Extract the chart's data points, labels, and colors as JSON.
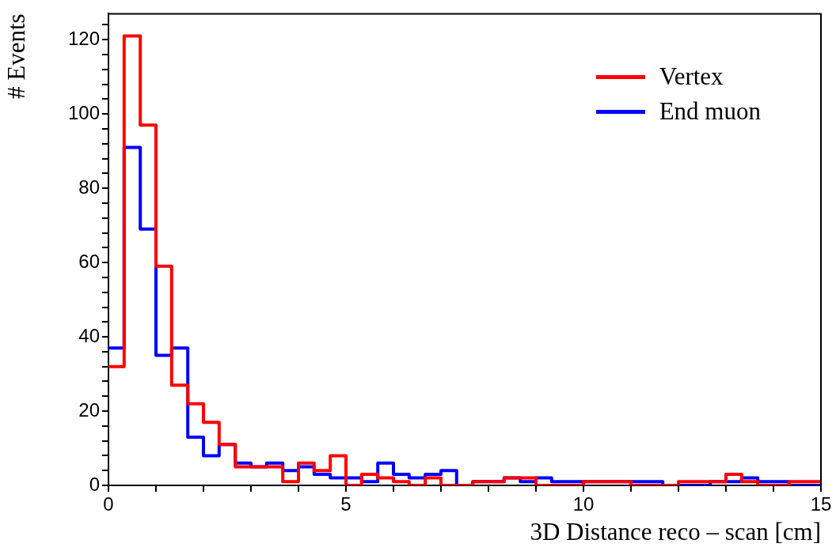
{
  "chart_data": {
    "type": "histogram",
    "xlabel": "3D Distance reco – scan [cm]",
    "ylabel": "# Events",
    "bins": [
      0,
      0.33,
      0.67,
      1,
      1.33,
      1.67,
      2,
      2.33,
      2.67,
      3,
      3.33,
      3.67,
      4,
      4.33,
      4.67,
      5,
      5.33,
      5.67,
      6,
      6.33,
      6.67,
      7,
      7.33,
      7.67,
      8,
      8.33,
      8.67,
      9,
      9.33,
      9.67,
      10,
      10.33,
      10.67,
      11,
      11.33,
      11.67,
      12,
      12.33,
      12.67,
      13,
      13.33,
      13.67,
      14,
      14.33,
      14.67,
      15
    ],
    "series": [
      {
        "name": "Vertex",
        "color": "#ff0000",
        "values": [
          32,
          121,
          97,
          59,
          27,
          22,
          17,
          11,
          5,
          5,
          5,
          1,
          6,
          4,
          8,
          0,
          3,
          2,
          1,
          0,
          2,
          0,
          0,
          1,
          1,
          2,
          2,
          0,
          0,
          0,
          1,
          1,
          1,
          0,
          0,
          0,
          1,
          1,
          1,
          3,
          1,
          0,
          0,
          1,
          1
        ]
      },
      {
        "name": "End muon",
        "color": "#0000ff",
        "values": [
          37,
          91,
          69,
          35,
          37,
          13,
          8,
          11,
          6,
          5,
          6,
          4,
          5,
          3,
          2,
          2,
          1,
          6,
          3,
          2,
          3,
          4,
          0,
          1,
          1,
          2,
          1,
          2,
          1,
          1,
          1,
          1,
          1,
          1,
          1,
          0,
          0,
          0,
          1,
          1,
          2,
          1,
          1,
          0,
          0
        ]
      }
    ],
    "xlim": [
      0,
      15
    ],
    "xticks": [
      0,
      {
        "value": 1,
        "label": null
      },
      {
        "value": 2,
        "label": null
      },
      {
        "value": 3,
        "label": null
      },
      {
        "value": 4,
        "label": null
      },
      5,
      {
        "value": 6,
        "label": null
      },
      {
        "value": 7,
        "label": null
      },
      {
        "value": 8,
        "label": null
      },
      {
        "value": 9,
        "label": null
      },
      10,
      {
        "value": 11,
        "label": null
      },
      {
        "value": 12,
        "label": null
      },
      {
        "value": 13,
        "label": null
      },
      {
        "value": 14,
        "label": null
      },
      15
    ],
    "ylim": [
      0,
      127
    ],
    "yticks": [
      0,
      {
        "value": 4,
        "label": null
      },
      {
        "value": 8,
        "label": null
      },
      {
        "value": 12,
        "label": null
      },
      {
        "value": 16,
        "label": null
      },
      20,
      {
        "value": 24,
        "label": null
      },
      {
        "value": 28,
        "label": null
      },
      {
        "value": 32,
        "label": null
      },
      {
        "value": 36,
        "label": null
      },
      40,
      {
        "value": 44,
        "label": null
      },
      {
        "value": 48,
        "label": null
      },
      {
        "value": 52,
        "label": null
      },
      {
        "value": 56,
        "label": null
      },
      60,
      {
        "value": 64,
        "label": null
      },
      {
        "value": 68,
        "label": null
      },
      {
        "value": 72,
        "label": null
      },
      {
        "value": 76,
        "label": null
      },
      80,
      {
        "value": 84,
        "label": null
      },
      {
        "value": 88,
        "label": null
      },
      {
        "value": 92,
        "label": null
      },
      {
        "value": 96,
        "label": null
      },
      100,
      {
        "value": 104,
        "label": null
      },
      {
        "value": 108,
        "label": null
      },
      {
        "value": 112,
        "label": null
      },
      {
        "value": 116,
        "label": null
      },
      120,
      {
        "value": 124,
        "label": null
      }
    ],
    "grid": false,
    "legend": "top right"
  }
}
